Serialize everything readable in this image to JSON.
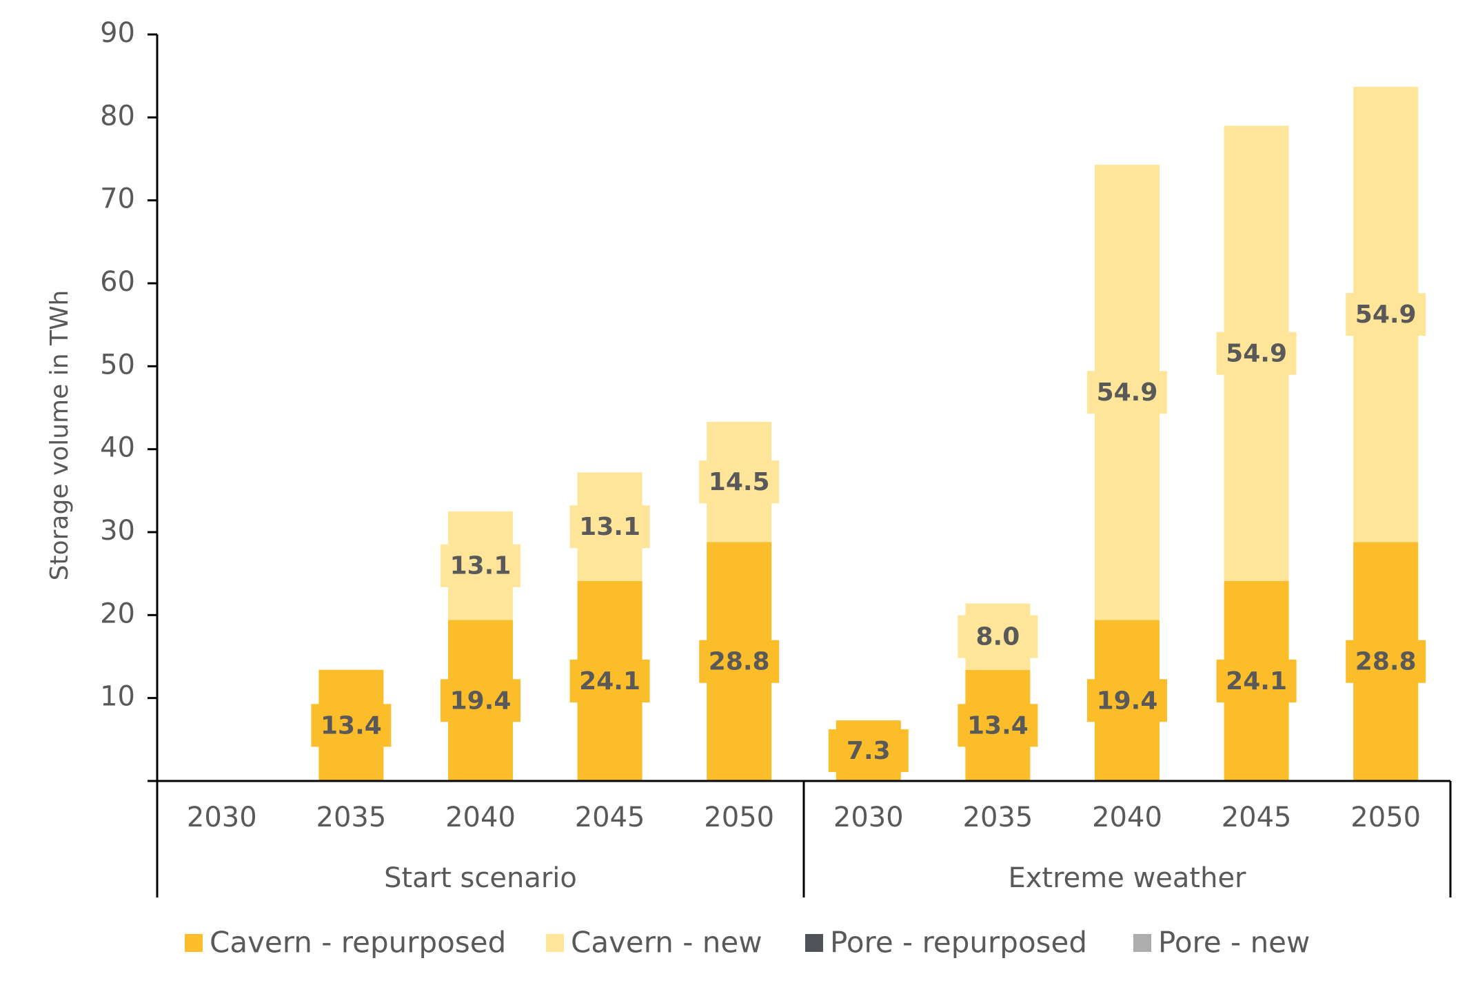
{
  "chart_data": {
    "type": "bar",
    "stacked": true,
    "ylabel": "Storage volume in TWh",
    "ylim": [
      0,
      90
    ],
    "yticks": [
      10,
      20,
      30,
      40,
      50,
      60,
      70,
      80,
      90
    ],
    "grid": false,
    "legend_position": "bottom",
    "groups": [
      {
        "label": "Start scenario",
        "categories": [
          "2030",
          "2035",
          "2040",
          "2045",
          "2050"
        ]
      },
      {
        "label": "Extreme weather",
        "categories": [
          "2030",
          "2035",
          "2040",
          "2045",
          "2050"
        ]
      }
    ],
    "series": [
      {
        "name": "Cavern - repurposed",
        "color": "#FBBD2A",
        "values": [
          0,
          13.4,
          19.4,
          24.1,
          28.8,
          7.3,
          13.4,
          19.4,
          24.1,
          28.8
        ]
      },
      {
        "name": "Cavern - new",
        "color": "#FEE599",
        "values": [
          0,
          0,
          13.1,
          13.1,
          14.5,
          0,
          8.0,
          54.9,
          54.9,
          54.9
        ]
      },
      {
        "name": "Pore - repurposed",
        "color": "#505459",
        "values": [
          0,
          0,
          0,
          0,
          0,
          0,
          0,
          0,
          0,
          0
        ]
      },
      {
        "name": "Pore - new",
        "color": "#ADADAD",
        "values": [
          0,
          0,
          0,
          0,
          0,
          0,
          0,
          0,
          0,
          0
        ]
      }
    ],
    "data_labels": [
      [
        "",
        "13.4",
        "19.4",
        "24.1",
        "28.8",
        "7.3",
        "13.4",
        "19.4",
        "24.1",
        "28.8"
      ],
      [
        "",
        "",
        "13.1",
        "13.1",
        "14.5",
        "",
        "8.0",
        "54.9",
        "54.9",
        "54.9"
      ],
      [
        "",
        "",
        "",
        "",
        "",
        "",
        "",
        "",
        "",
        ""
      ],
      [
        "",
        "",
        "",
        "",
        "",
        "",
        "",
        "",
        "",
        ""
      ]
    ]
  }
}
